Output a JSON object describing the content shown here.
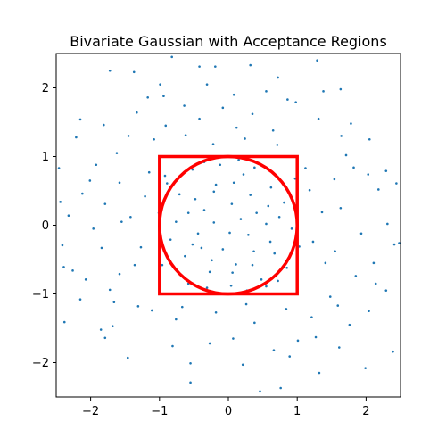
{
  "chart_data": {
    "type": "scatter",
    "title": "Bivariate Gaussian with Acceptance Regions",
    "xlabel": "",
    "ylabel": "",
    "xlim": [
      -2.5,
      2.5
    ],
    "ylim": [
      -2.5,
      2.5
    ],
    "xticks": [
      -2,
      -1,
      0,
      1,
      2
    ],
    "yticks": [
      -2,
      -1,
      0,
      1,
      2
    ],
    "grid": false,
    "legend": "none",
    "point_color": "#1f77b4",
    "region_color": "#ff0000",
    "points_note_count": 1000,
    "points": [
      [
        -0.42,
        2.31
      ],
      [
        -0.19,
        2.31
      ],
      [
        0.32,
        2.33
      ],
      [
        1.29,
        2.4
      ],
      [
        -1.72,
        2.25
      ],
      [
        -1.37,
        2.23
      ],
      [
        -0.82,
        2.45
      ],
      [
        0.72,
        2.15
      ],
      [
        -0.99,
        2.05
      ],
      [
        1.63,
        1.98
      ],
      [
        -1.17,
        1.86
      ],
      [
        0.08,
        1.9
      ],
      [
        0.55,
        1.95
      ],
      [
        -0.31,
        2.05
      ],
      [
        0.86,
        1.83
      ],
      [
        1.38,
        1.95
      ],
      [
        -2.15,
        1.54
      ],
      [
        -1.81,
        1.46
      ],
      [
        -0.64,
        1.74
      ],
      [
        0.35,
        1.62
      ],
      [
        1.31,
        1.55
      ],
      [
        1.78,
        1.48
      ],
      [
        -2.21,
        1.28
      ],
      [
        1.64,
        1.3
      ],
      [
        2.05,
        1.25
      ],
      [
        -0.42,
        1.55
      ],
      [
        0.65,
        1.38
      ],
      [
        -0.91,
        1.45
      ],
      [
        -1.45,
        1.3
      ],
      [
        0.12,
        1.42
      ],
      [
        2.29,
        0.79
      ],
      [
        -2.46,
        0.83
      ],
      [
        -1.92,
        0.88
      ],
      [
        -1.58,
        0.62
      ],
      [
        1.82,
        0.84
      ],
      [
        1.54,
        0.67
      ],
      [
        2.18,
        0.52
      ],
      [
        -2.12,
        0.46
      ],
      [
        -1.79,
        0.31
      ],
      [
        1.63,
        0.25
      ],
      [
        2.31,
        0.02
      ],
      [
        -2.32,
        0.14
      ],
      [
        -1.96,
        -0.05
      ],
      [
        -1.55,
        0.05
      ],
      [
        1.93,
        -0.12
      ],
      [
        2.48,
        -0.26
      ],
      [
        -2.41,
        -0.29
      ],
      [
        -1.84,
        -0.33
      ],
      [
        1.55,
        -0.38
      ],
      [
        2.11,
        -0.55
      ],
      [
        -2.26,
        -0.66
      ],
      [
        -1.58,
        -0.71
      ],
      [
        1.85,
        -0.74
      ],
      [
        2.29,
        -0.95
      ],
      [
        -1.72,
        -0.94
      ],
      [
        -2.15,
        -1.08
      ],
      [
        1.48,
        -1.04
      ],
      [
        2.04,
        -1.25
      ],
      [
        -1.31,
        -1.18
      ],
      [
        -2.38,
        -1.41
      ],
      [
        -1.68,
        -1.47
      ],
      [
        1.21,
        -1.34
      ],
      [
        1.76,
        -1.45
      ],
      [
        -0.76,
        -1.37
      ],
      [
        0.38,
        -1.42
      ],
      [
        -1.79,
        -1.64
      ],
      [
        1.01,
        -1.68
      ],
      [
        1.61,
        -1.78
      ],
      [
        -0.27,
        -1.72
      ],
      [
        0.66,
        -1.82
      ],
      [
        -1.46,
        -1.93
      ],
      [
        -0.55,
        -2.01
      ],
      [
        0.21,
        -2.03
      ],
      [
        1.32,
        -2.15
      ],
      [
        1.99,
        -2.08
      ],
      [
        -0.55,
        -2.29
      ],
      [
        0.76,
        -2.37
      ],
      [
        0.46,
        -2.42
      ],
      [
        2.39,
        -1.84
      ],
      [
        -1.85,
        -1.52
      ],
      [
        -0.92,
        0.72
      ],
      [
        -0.71,
        0.45
      ],
      [
        -0.52,
        0.81
      ],
      [
        -0.35,
        0.22
      ],
      [
        -0.18,
        0.59
      ],
      [
        0.05,
        0.31
      ],
      [
        0.22,
        0.74
      ],
      [
        0.41,
        0.18
      ],
      [
        0.62,
        0.55
      ],
      [
        0.81,
        0.33
      ],
      [
        -0.84,
        -0.21
      ],
      [
        -0.63,
        -0.45
      ],
      [
        -0.44,
        -0.12
      ],
      [
        -0.27,
        -0.68
      ],
      [
        -0.08,
        -0.35
      ],
      [
        0.11,
        -0.57
      ],
      [
        0.29,
        -0.14
      ],
      [
        0.48,
        -0.79
      ],
      [
        0.67,
        -0.41
      ],
      [
        0.85,
        -0.62
      ],
      [
        -0.76,
        0.05
      ],
      [
        -0.58,
        0.18
      ],
      [
        -0.39,
        -0.33
      ],
      [
        -0.21,
        0.04
      ],
      [
        0.02,
        -0.11
      ],
      [
        0.18,
        0.09
      ],
      [
        0.37,
        -0.38
      ],
      [
        0.55,
        0.02
      ],
      [
        0.74,
        0.12
      ],
      [
        0.92,
        -0.05
      ],
      [
        -0.35,
        0.92
      ],
      [
        -0.12,
        0.88
      ],
      [
        0.15,
        0.95
      ],
      [
        0.38,
        0.84
      ],
      [
        -0.58,
        -0.85
      ],
      [
        -0.31,
        -0.91
      ],
      [
        0.04,
        -0.88
      ],
      [
        0.27,
        -0.95
      ],
      [
        0.55,
        -0.89
      ],
      [
        0.72,
        -0.81
      ],
      [
        -1.21,
        0.42
      ],
      [
        -1.42,
        0.12
      ],
      [
        -1.27,
        -0.32
      ],
      [
        -1.36,
        -0.58
      ],
      [
        -1.15,
        0.77
      ],
      [
        1.18,
        0.51
      ],
      [
        1.36,
        0.19
      ],
      [
        1.23,
        -0.24
      ],
      [
        1.41,
        -0.55
      ],
      [
        1.12,
        0.83
      ],
      [
        -1.08,
        1.25
      ],
      [
        -0.62,
        1.31
      ],
      [
        -0.22,
        1.18
      ],
      [
        0.24,
        1.26
      ],
      [
        0.71,
        1.17
      ],
      [
        -1.11,
        -1.24
      ],
      [
        -0.67,
        -1.19
      ],
      [
        -0.18,
        -1.27
      ],
      [
        0.26,
        -1.15
      ],
      [
        0.84,
        -1.22
      ],
      [
        -0.48,
        0.38
      ],
      [
        -0.21,
        0.49
      ],
      [
        0.08,
        0.62
      ],
      [
        0.32,
        0.44
      ],
      [
        0.58,
        0.28
      ],
      [
        -0.52,
        -0.28
      ],
      [
        -0.24,
        -0.51
      ],
      [
        0.06,
        -0.69
      ],
      [
        0.35,
        -0.58
      ],
      [
        0.61,
        -0.24
      ],
      [
        -1.01,
        0.18
      ],
      [
        1.03,
        -0.31
      ],
      [
        -0.96,
        -0.58
      ],
      [
        0.97,
        0.68
      ],
      [
        -0.89,
        0.61
      ],
      [
        -1.62,
        1.05
      ],
      [
        1.71,
        1.02
      ],
      [
        -1.66,
        -1.12
      ],
      [
        1.59,
        -1.17
      ],
      [
        -2.01,
        0.65
      ],
      [
        2.03,
        0.74
      ],
      [
        -2.07,
        -0.79
      ],
      [
        2.14,
        -0.85
      ],
      [
        -1.33,
        1.64
      ],
      [
        1.27,
        -1.63
      ],
      [
        -0.94,
        1.88
      ],
      [
        0.98,
        1.79
      ],
      [
        -0.81,
        -1.76
      ],
      [
        0.89,
        -1.91
      ],
      [
        -0.08,
        1.71
      ],
      [
        0.07,
        -1.65
      ],
      [
        -2.44,
        0.34
      ],
      [
        2.44,
        0.61
      ],
      [
        -2.39,
        -0.61
      ],
      [
        2.41,
        -0.28
      ]
    ]
  }
}
